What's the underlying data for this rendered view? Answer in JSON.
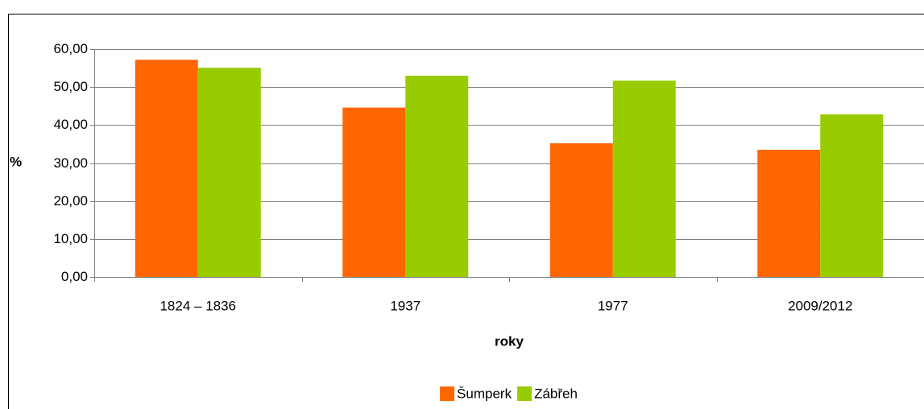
{
  "chart_data": {
    "type": "bar",
    "categories": [
      "1824 – 1836",
      "1937",
      "1977",
      "2009/2012"
    ],
    "series": [
      {
        "name": "Šumperk",
        "color": "#ff6600",
        "values": [
          57.2,
          44.6,
          35.2,
          33.5
        ]
      },
      {
        "name": "Zábřeh",
        "color": "#99cc00",
        "values": [
          55.1,
          53.0,
          51.7,
          42.8
        ]
      }
    ],
    "ylabel": "%",
    "xlabel": "roky",
    "ylim": [
      0,
      60
    ],
    "yticks": [
      {
        "value": 0,
        "label": "0,00"
      },
      {
        "value": 10,
        "label": "10,00"
      },
      {
        "value": 20,
        "label": "20,00"
      },
      {
        "value": 30,
        "label": "30,00"
      },
      {
        "value": 40,
        "label": "40,00"
      },
      {
        "value": 50,
        "label": "50,00"
      },
      {
        "value": 60,
        "label": "60,00"
      }
    ],
    "grid": true,
    "legend": "bottom"
  }
}
